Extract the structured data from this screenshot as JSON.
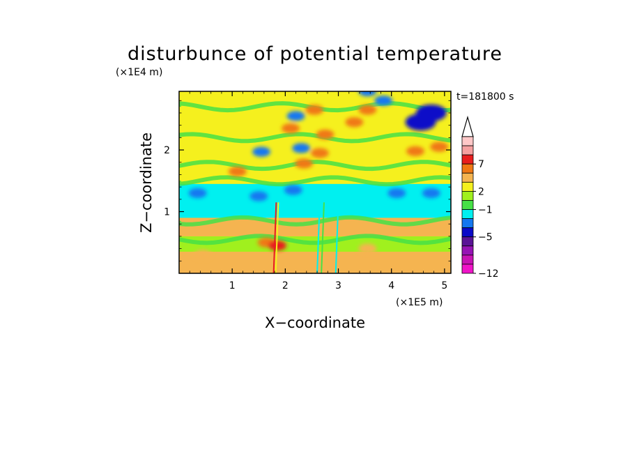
{
  "chart_data": {
    "type": "heatmap",
    "title": "disturbunce of potential temperature",
    "time_label": "t=181800 s",
    "xlabel": "X−coordinate",
    "ylabel": "Z−coordinate",
    "x_unit": "(×1E5 m)",
    "y_unit": "(×1E4 m)",
    "xlim": [
      0,
      5.12
    ],
    "ylim": [
      0,
      2.95
    ],
    "x_ticks": [
      "1",
      "2",
      "3",
      "4",
      "5"
    ],
    "y_ticks": [
      "1",
      "2"
    ],
    "colorbar": {
      "tick_labels": [
        "7",
        "2",
        "−1",
        "−5",
        "−12"
      ],
      "extend": "max",
      "colors_top_to_bottom": [
        "#ffc8c8",
        "#f5a0a0",
        "#e81e1e",
        "#f07814",
        "#f5b450",
        "#f5f01e",
        "#a0f01e",
        "#46e146",
        "#00f0f0",
        "#1478f0",
        "#0a0ac8",
        "#5a1496",
        "#9614b4",
        "#c814b4",
        "#f014c8"
      ]
    },
    "bands": [
      {
        "z": [
          0.0,
          0.35
        ],
        "level": "warm-weak"
      },
      {
        "z": [
          0.35,
          0.6
        ],
        "level": "neutral"
      },
      {
        "z": [
          0.6,
          0.9
        ],
        "level": "warm-weak"
      },
      {
        "z": [
          0.9,
          1.45
        ],
        "level": "cool-weak"
      },
      {
        "z": [
          1.45,
          2.95
        ],
        "level": "mixed"
      }
    ],
    "features": [
      {
        "x": 0.35,
        "z": 1.3,
        "value": -5
      },
      {
        "x": 1.5,
        "z": 1.25,
        "value": -5
      },
      {
        "x": 2.15,
        "z": 1.35,
        "value": -5
      },
      {
        "x": 4.1,
        "z": 1.3,
        "value": -5
      },
      {
        "x": 4.75,
        "z": 1.3,
        "value": -5
      },
      {
        "x": 2.3,
        "z": 2.03,
        "value": -5
      },
      {
        "x": 1.55,
        "z": 1.97,
        "value": -5
      },
      {
        "x": 2.2,
        "z": 2.55,
        "value": -5
      },
      {
        "x": 3.55,
        "z": 2.95,
        "value": -5
      },
      {
        "x": 3.85,
        "z": 2.8,
        "value": -5
      },
      {
        "x": 4.55,
        "z": 2.45,
        "value": -7
      },
      {
        "x": 4.75,
        "z": 2.6,
        "value": -7
      },
      {
        "x": 2.55,
        "z": 2.65,
        "value": 4
      },
      {
        "x": 2.75,
        "z": 2.25,
        "value": 4
      },
      {
        "x": 2.1,
        "z": 2.35,
        "value": 4
      },
      {
        "x": 2.35,
        "z": 1.78,
        "value": 4
      },
      {
        "x": 2.65,
        "z": 1.95,
        "value": 4
      },
      {
        "x": 3.3,
        "z": 2.45,
        "value": 4
      },
      {
        "x": 3.55,
        "z": 2.65,
        "value": 4
      },
      {
        "x": 4.45,
        "z": 1.98,
        "value": 4
      },
      {
        "x": 4.9,
        "z": 2.05,
        "value": 4
      },
      {
        "x": 1.1,
        "z": 1.65,
        "value": 4
      },
      {
        "x": 1.65,
        "z": 0.5,
        "value": 4
      },
      {
        "x": 1.85,
        "z": 0.45,
        "value": 5
      },
      {
        "x": 0.45,
        "z": 0.3,
        "value": 3
      },
      {
        "x": 3.55,
        "z": 0.4,
        "value": 3
      }
    ]
  }
}
